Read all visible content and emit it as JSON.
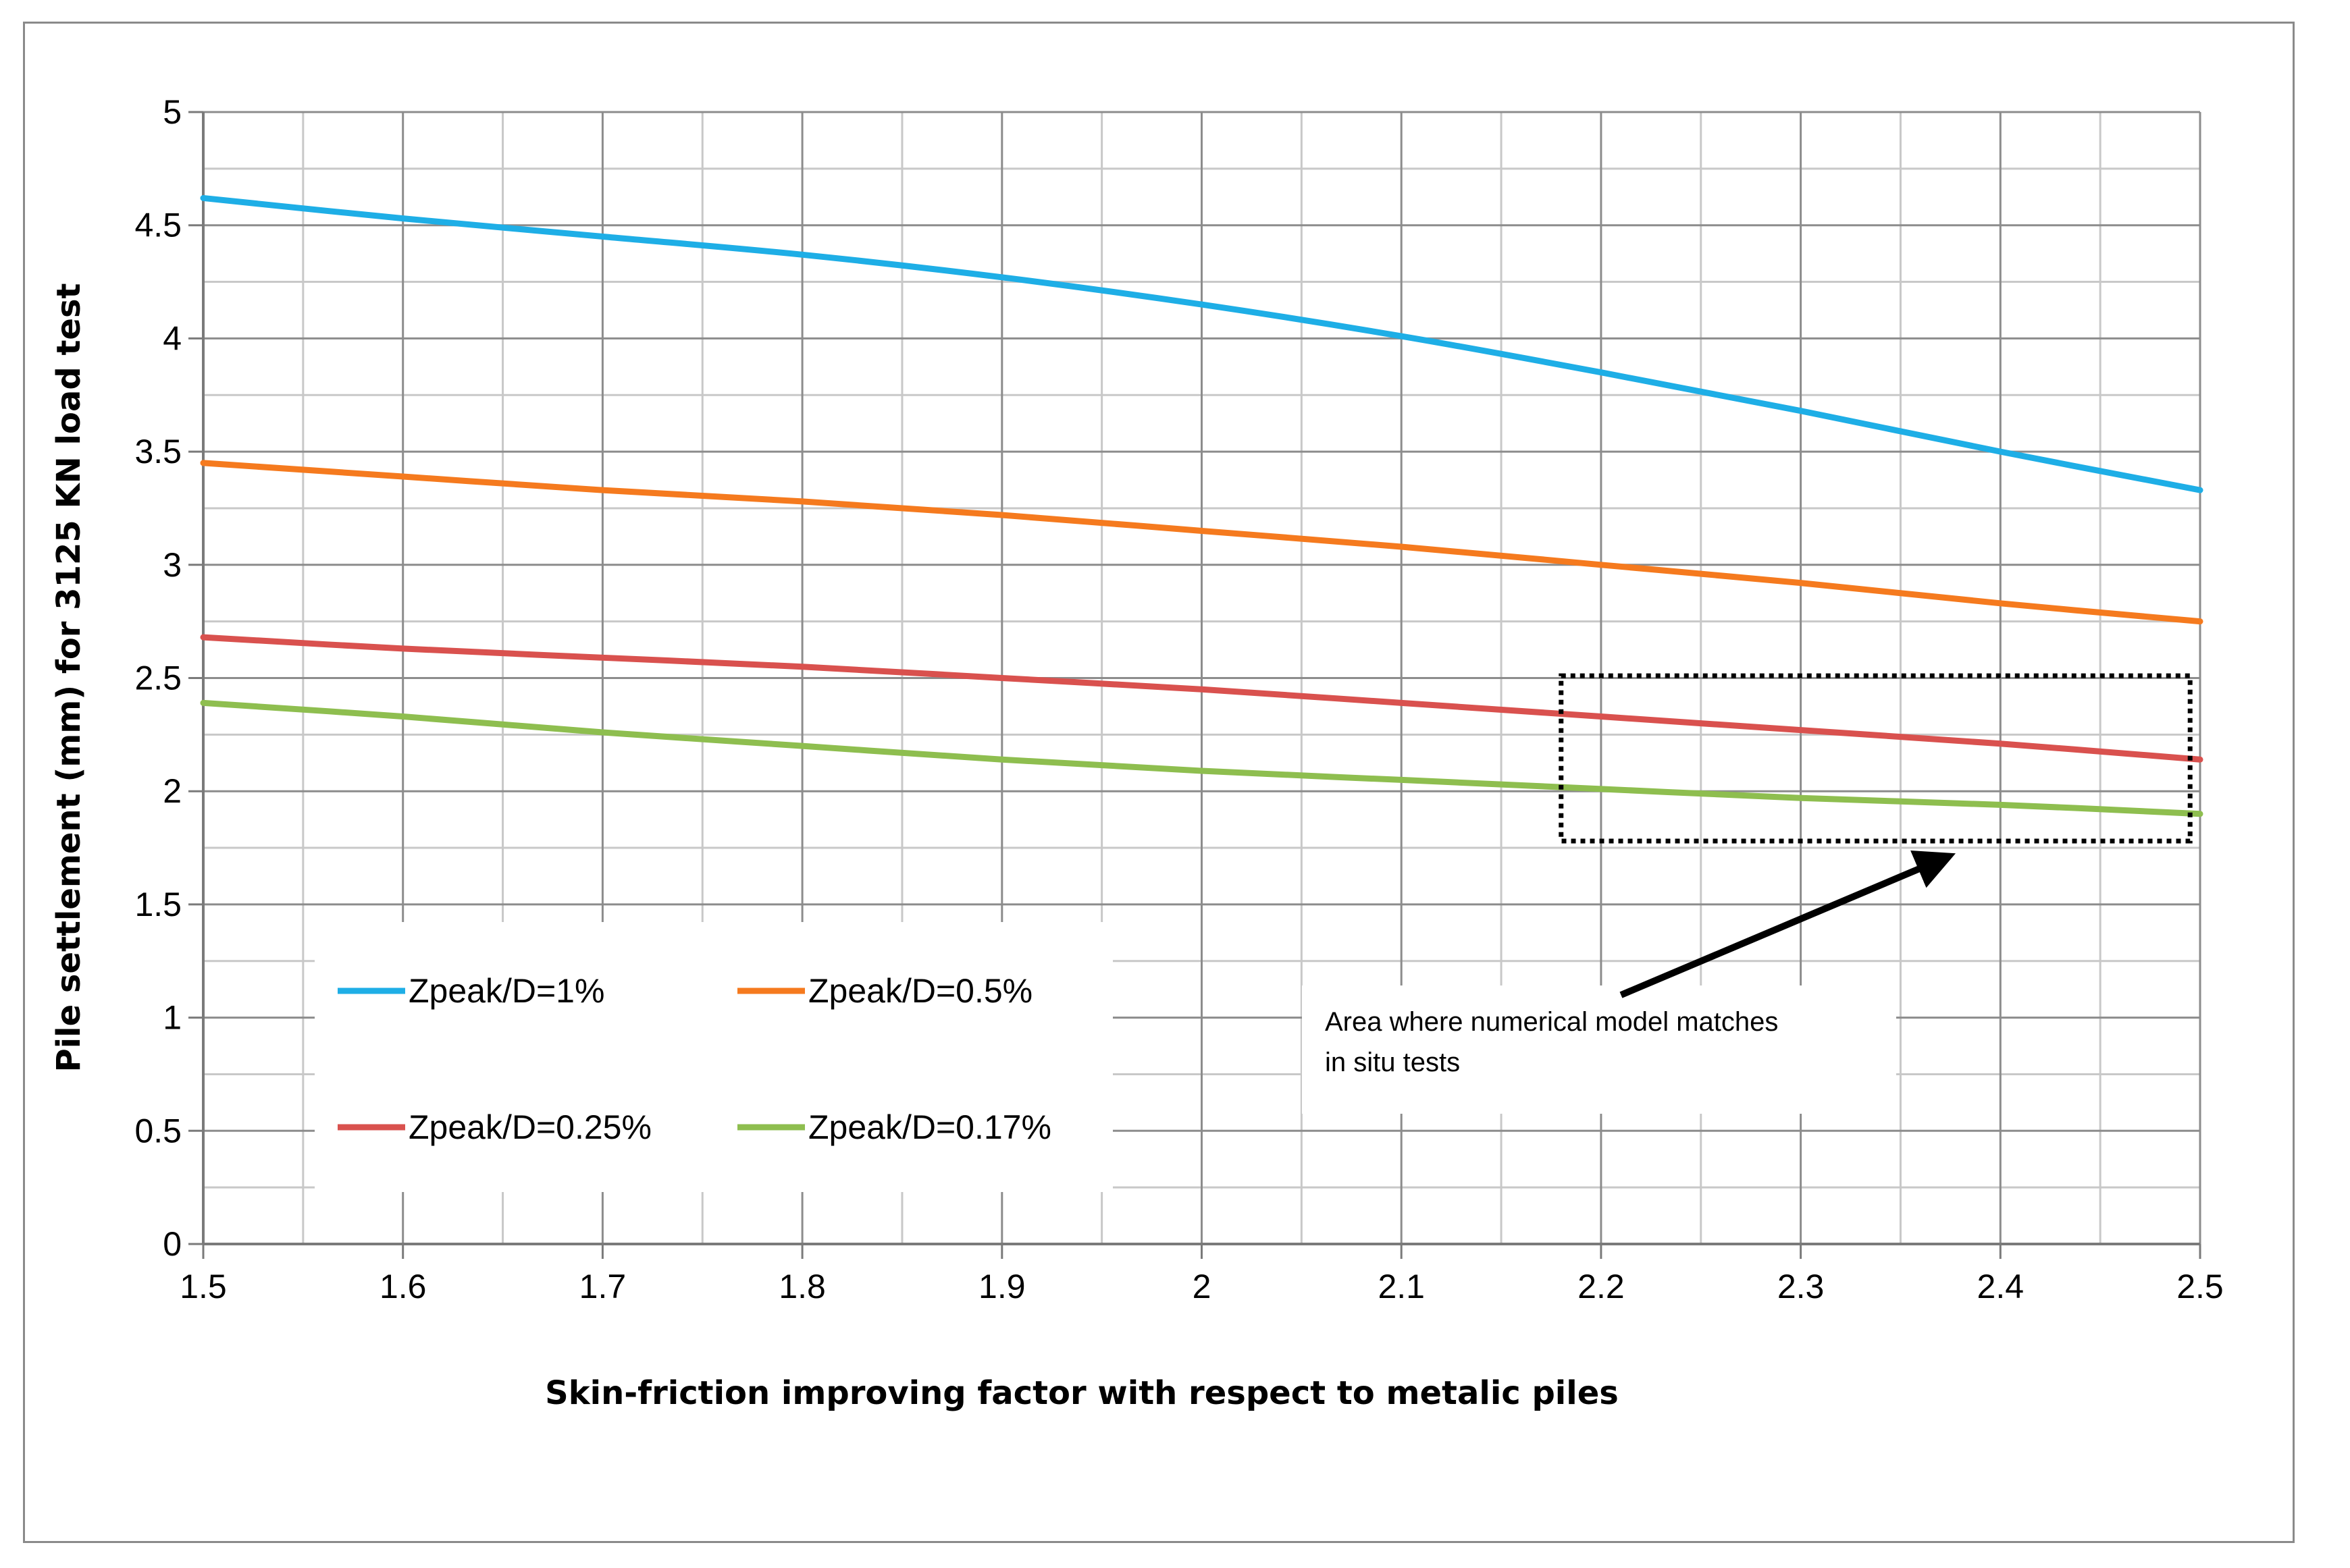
{
  "chart_data": {
    "type": "line",
    "title": "",
    "xlabel": "Skin-friction improving factor with respect  to metalic piles",
    "ylabel": "Pile settlement (mm) for 3125 KN load test",
    "xlim": [
      1.5,
      2.5
    ],
    "ylim": [
      0,
      5
    ],
    "grid": true,
    "x_ticks": [
      "1.5",
      "1.6",
      "1.7",
      "1.8",
      "1.9",
      "2",
      "2.1",
      "2.2",
      "2.3",
      "2.4",
      "2.5"
    ],
    "y_ticks": [
      "0",
      "0.5",
      "1",
      "1.5",
      "2",
      "2.5",
      "3",
      "3.5",
      "4",
      "4.5",
      "5"
    ],
    "x": [
      1.5,
      1.6,
      1.7,
      1.8,
      1.9,
      2.0,
      2.1,
      2.2,
      2.3,
      2.4,
      2.5
    ],
    "series": [
      {
        "name": "Zpeak/D=1%",
        "color": "#1eaee6",
        "values": [
          4.62,
          4.53,
          4.45,
          4.37,
          4.27,
          4.15,
          4.01,
          3.85,
          3.68,
          3.5,
          3.33
        ]
      },
      {
        "name": "Zpeak/D=0.5%",
        "color": "#f57a1e",
        "values": [
          3.45,
          3.39,
          3.33,
          3.28,
          3.22,
          3.15,
          3.08,
          3.0,
          2.92,
          2.83,
          2.75
        ]
      },
      {
        "name": "Zpeak/D=0.25%",
        "color": "#d9514e",
        "values": [
          2.68,
          2.63,
          2.59,
          2.55,
          2.5,
          2.45,
          2.39,
          2.33,
          2.27,
          2.21,
          2.14
        ]
      },
      {
        "name": "Zpeak/D=0.17%",
        "color": "#8ebe4f",
        "values": [
          2.39,
          2.33,
          2.26,
          2.2,
          2.14,
          2.09,
          2.05,
          2.01,
          1.97,
          1.94,
          1.9
        ]
      }
    ],
    "legend_position": "lower-left",
    "annotation": {
      "text_line1": "Area where numerical  model matches",
      "text_line2": "in situ tests",
      "box_x": [
        2.18,
        2.495
      ],
      "box_y": [
        1.78,
        2.51
      ],
      "arrow_from": [
        2.21,
        1.1
      ],
      "arrow_to": [
        2.375,
        1.78
      ]
    }
  }
}
